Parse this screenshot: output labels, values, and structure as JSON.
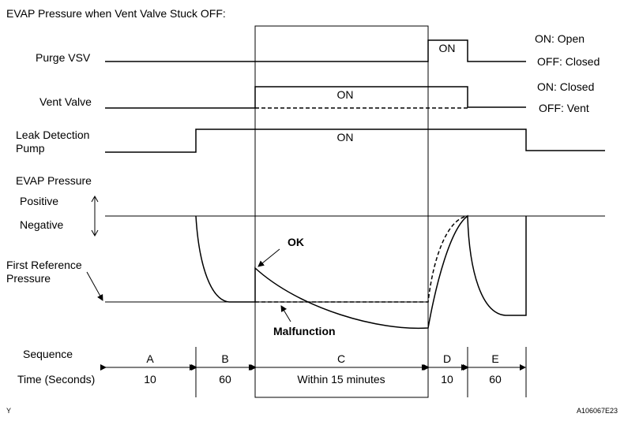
{
  "title": "EVAP Pressure when Vent Valve Stuck OFF:",
  "signals": {
    "purge_vsv": {
      "label": "Purge VSV",
      "on_state": "ON: Open",
      "off_state": "OFF: Closed",
      "pulse_label": "ON"
    },
    "vent_valve": {
      "label": "Vent Valve",
      "on_state": "ON: Closed",
      "off_state": "OFF: Vent",
      "pulse_label": "ON"
    },
    "leak_detection_pump": {
      "label_line1": "Leak Detection",
      "label_line2": "Pump",
      "pulse_label": "ON"
    }
  },
  "evap": {
    "label": "EVAP Pressure",
    "positive": "Positive",
    "negative": "Negative",
    "reference_line1": "First Reference",
    "reference_line2": "Pressure",
    "ok_label": "OK",
    "malfunction_label": "Malfunction"
  },
  "sequence": {
    "label": "Sequence",
    "time_label": "Time (Seconds)",
    "steps": [
      {
        "name": "A",
        "time": "10"
      },
      {
        "name": "B",
        "time": "60"
      },
      {
        "name": "C",
        "time": "Within 15 minutes"
      },
      {
        "name": "D",
        "time": "10"
      },
      {
        "name": "E",
        "time": "60"
      }
    ]
  },
  "footer": {
    "left": "Y",
    "right": "A106067E23"
  }
}
